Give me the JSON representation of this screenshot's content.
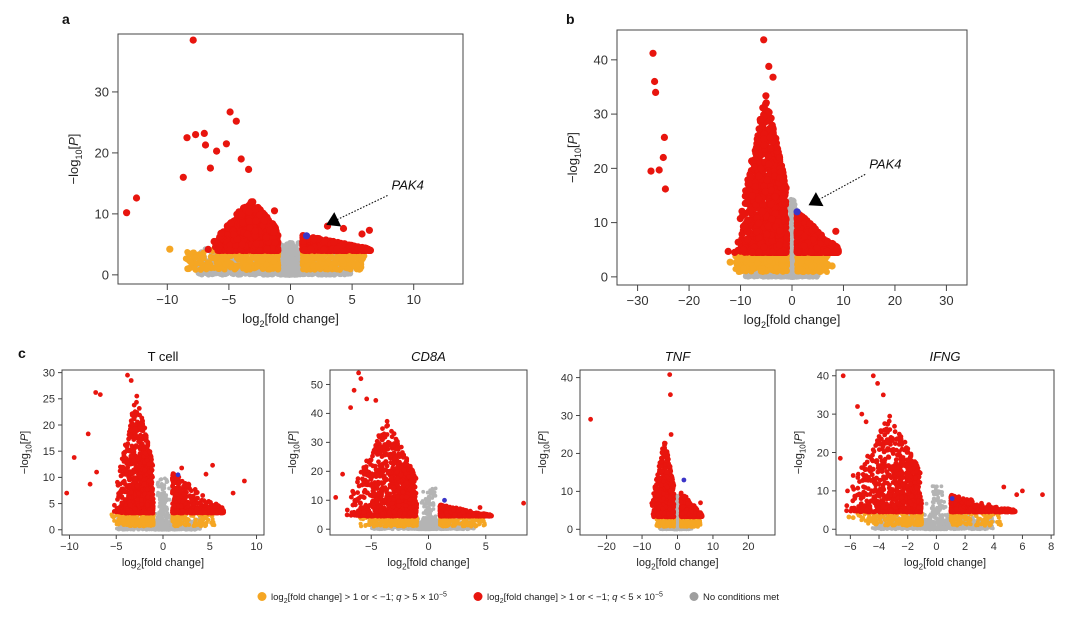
{
  "figure": {
    "panel_labels": [
      "a",
      "b",
      "c"
    ],
    "legend": [
      {
        "color": "#f5a623",
        "parts": [
          [
            "log",
            ""
          ],
          [
            "2",
            "sub"
          ],
          [
            "[fold change] > 1 or < −1; ",
            ""
          ],
          [
            "q",
            "i"
          ],
          [
            " > 5 × 10",
            ""
          ],
          [
            "−5",
            "sup"
          ]
        ]
      },
      {
        "color": "#e8150e",
        "parts": [
          [
            "log",
            ""
          ],
          [
            "2",
            "sub"
          ],
          [
            "[fold change] > 1 or < −1; ",
            ""
          ],
          [
            "q",
            "i"
          ],
          [
            " < 5 × 10",
            ""
          ],
          [
            "−5",
            "sup"
          ]
        ]
      },
      {
        "color": "#9e9e9e",
        "parts": [
          [
            "No conditions met",
            ""
          ]
        ]
      }
    ]
  },
  "colors": {
    "orange": "#f5a623",
    "red": "#e8150e",
    "gray": "#b4b4b4",
    "highlight": "#3b35c8",
    "black": "#000000"
  },
  "chart_data": [
    {
      "id": "a",
      "type": "scatter",
      "title": "",
      "xlabel": [
        [
          "log",
          ""
        ],
        [
          "2",
          "sub"
        ],
        [
          "[fold change]",
          ""
        ]
      ],
      "ylabel": [
        [
          "−log",
          ""
        ],
        [
          "10",
          "sub"
        ],
        [
          "[",
          ""
        ],
        [
          "P",
          "i"
        ],
        [
          "]",
          ""
        ]
      ],
      "xlim": [
        -14,
        14
      ],
      "ylim": [
        -1.5,
        39.5
      ],
      "xticks": [
        -10,
        -5,
        0,
        5,
        10
      ],
      "yticks": [
        0,
        10,
        20,
        30
      ],
      "grid": false,
      "annotation": {
        "label": "PAK4",
        "point": [
          2.9,
          8.2
        ],
        "text_at": [
          8.2,
          14.0
        ]
      },
      "series": [
        {
          "category": "ns",
          "left": [
            -7.5,
            -0.5
          ],
          "right": [
            0.3,
            5.0
          ],
          "ymax": 3.0
        },
        {
          "category": "fc_only",
          "left": [
            -8.5,
            -1.0
          ],
          "right": [
            1.0,
            6.0
          ],
          "ymax": 4.0
        },
        {
          "category": "sig",
          "left": [
            -6.0,
            -1.0
          ],
          "leftPeak": 12.5,
          "right": [
            1.0,
            6.5
          ],
          "rightPeak": 6.5,
          "count": 1450
        },
        {
          "category": "sig_outliers",
          "points": [
            [
              -7.9,
              38.5
            ],
            [
              -13.3,
              10.2
            ],
            [
              -12.5,
              12.6
            ],
            [
              -4.9,
              26.7
            ],
            [
              -4.4,
              25.2
            ],
            [
              -8.4,
              22.5
            ],
            [
              -7.7,
              23.0
            ],
            [
              -7.0,
              23.2
            ],
            [
              -6.9,
              21.3
            ],
            [
              -6.0,
              20.3
            ],
            [
              -5.2,
              21.5
            ],
            [
              -8.7,
              16.0
            ],
            [
              -6.5,
              17.5
            ],
            [
              -4.0,
              19.0
            ],
            [
              -3.4,
              17.3
            ],
            [
              -1.3,
              10.5
            ],
            [
              3.0,
              8.0
            ],
            [
              4.3,
              7.6
            ],
            [
              6.4,
              7.3
            ],
            [
              5.8,
              6.7
            ]
          ]
        },
        {
          "category": "fc_only_outliers",
          "points": [
            [
              -9.8,
              4.2
            ],
            [
              -6.3,
              4.0
            ]
          ]
        },
        {
          "category": "highlight",
          "points": [
            [
              1.3,
              6.4
            ]
          ]
        }
      ]
    },
    {
      "id": "b",
      "type": "scatter",
      "title": "",
      "xlabel": [
        [
          "log",
          ""
        ],
        [
          "2",
          "sub"
        ],
        [
          "[fold change]",
          ""
        ]
      ],
      "ylabel": [
        [
          "−log",
          ""
        ],
        [
          "10",
          "sub"
        ],
        [
          "[",
          ""
        ],
        [
          "P",
          "i"
        ],
        [
          "]",
          ""
        ]
      ],
      "xlim": [
        -34,
        34
      ],
      "ylim": [
        -1.5,
        45.5
      ],
      "xticks": [
        -30,
        -20,
        -10,
        0,
        10,
        20,
        30
      ],
      "yticks": [
        0,
        10,
        20,
        30,
        40
      ],
      "grid": false,
      "annotation": {
        "label": "PAK4",
        "point": [
          3.2,
          13.2
        ],
        "text_at": [
          15.0,
          20.0
        ]
      },
      "series": [
        {
          "category": "ns",
          "left": [
            -9.0,
            -0.5
          ],
          "right": [
            0.3,
            5.0
          ],
          "ymax": 3.0
        },
        {
          "category": "fc_only",
          "left": [
            -11.0,
            -1.0
          ],
          "right": [
            1.0,
            7.0
          ],
          "ymax": 4.5
        },
        {
          "category": "sig",
          "left": [
            -10.0,
            -1.0
          ],
          "leftPeak": 34.0,
          "right": [
            1.0,
            9.0
          ],
          "rightPeak": 12.0,
          "count": 1800
        },
        {
          "category": "sig_outliers",
          "points": [
            [
              -27.0,
              41.2
            ],
            [
              -26.7,
              36.0
            ],
            [
              -26.5,
              34.0
            ],
            [
              -24.8,
              25.7
            ],
            [
              -25.0,
              22.0
            ],
            [
              -25.8,
              19.7
            ],
            [
              -27.4,
              19.5
            ],
            [
              -24.6,
              16.2
            ],
            [
              -5.5,
              43.7
            ],
            [
              -4.5,
              38.8
            ],
            [
              -3.7,
              36.8
            ],
            [
              -12.4,
              4.7
            ],
            [
              8.5,
              8.4
            ]
          ]
        },
        {
          "category": "fc_only_outliers",
          "points": [
            [
              -12.0,
              2.7
            ],
            [
              7.8,
              2.0
            ]
          ]
        },
        {
          "category": "highlight",
          "points": [
            [
              1.0,
              12.0
            ]
          ]
        }
      ]
    },
    {
      "id": "c1",
      "type": "scatter",
      "title": "T cell",
      "title_italic": false,
      "xlabel": [
        [
          "log",
          ""
        ],
        [
          "2",
          "sub"
        ],
        [
          "[fold change]",
          ""
        ]
      ],
      "ylabel": [
        [
          "−log",
          ""
        ],
        [
          "10",
          "sub"
        ],
        [
          "[",
          ""
        ],
        [
          "P",
          "i"
        ],
        [
          "]",
          ""
        ]
      ],
      "xlim": [
        -10.8,
        10.8
      ],
      "ylim": [
        -1.0,
        30.5
      ],
      "xticks": [
        -10,
        -5,
        0,
        5,
        10
      ],
      "yticks": [
        0,
        5,
        10,
        15,
        20,
        25,
        30
      ],
      "grid": false,
      "series": [
        {
          "category": "ns",
          "left": [
            -5.0,
            -0.4
          ],
          "right": [
            0.4,
            4.0
          ],
          "ymax": 2.2
        },
        {
          "category": "fc_only",
          "left": [
            -5.5,
            -1.0
          ],
          "right": [
            1.0,
            5.5
          ],
          "ymax": 3.2
        },
        {
          "category": "sig",
          "left": [
            -5.0,
            -1.0
          ],
          "leftPeak": 26.0,
          "right": [
            1.0,
            6.5
          ],
          "rightPeak": 11.0,
          "count": 1200
        },
        {
          "category": "sig_outliers",
          "points": [
            [
              -10.3,
              7.0
            ],
            [
              -7.2,
              26.2
            ],
            [
              -6.7,
              25.8
            ],
            [
              -8.0,
              18.3
            ],
            [
              -7.1,
              11.0
            ],
            [
              -3.8,
              29.5
            ],
            [
              -3.4,
              28.5
            ],
            [
              -9.5,
              13.8
            ],
            [
              -7.8,
              8.7
            ],
            [
              8.7,
              9.3
            ],
            [
              7.5,
              7.0
            ],
            [
              5.3,
              12.3
            ],
            [
              4.6,
              10.6
            ],
            [
              2.0,
              11.8
            ]
          ]
        },
        {
          "category": "fc_only_outliers",
          "points": [
            [
              5.3,
              1.5
            ]
          ]
        },
        {
          "category": "highlight",
          "points": [
            [
              1.6,
              10.5
            ]
          ]
        }
      ]
    },
    {
      "id": "c2",
      "type": "scatter",
      "title": "CD8A",
      "title_italic": true,
      "xlabel": [
        [
          "log",
          ""
        ],
        [
          "2",
          "sub"
        ],
        [
          "[fold change]",
          ""
        ]
      ],
      "ylabel": [
        [
          "−log",
          ""
        ],
        [
          "10",
          "sub"
        ],
        [
          "[",
          ""
        ],
        [
          "P",
          "i"
        ],
        [
          "]",
          ""
        ]
      ],
      "xlim": [
        -8.6,
        8.6
      ],
      "ylim": [
        -2.0,
        55.0
      ],
      "xticks": [
        -5,
        0,
        5
      ],
      "yticks": [
        0,
        10,
        20,
        30,
        40,
        50
      ],
      "grid": false,
      "series": [
        {
          "category": "ns",
          "left": [
            -5.0,
            -0.4
          ],
          "right": [
            0.4,
            4.0
          ],
          "ymax": 3.0
        },
        {
          "category": "fc_only",
          "left": [
            -6.0,
            -1.0
          ],
          "right": [
            1.0,
            5.0
          ],
          "ymax": 4.5
        },
        {
          "category": "sig",
          "left": [
            -6.8,
            -1.0
          ],
          "leftPeak": 38.0,
          "right": [
            1.0,
            5.5
          ],
          "rightPeak": 8.5,
          "count": 1300
        },
        {
          "category": "sig_outliers",
          "points": [
            [
              -6.1,
              54.0
            ],
            [
              -5.9,
              52.0
            ],
            [
              -6.5,
              48.0
            ],
            [
              -6.8,
              42.0
            ],
            [
              -5.4,
              45.0
            ],
            [
              -4.6,
              44.5
            ],
            [
              -3.0,
              33.0
            ],
            [
              -7.5,
              19.0
            ],
            [
              -8.1,
              11.0
            ],
            [
              8.3,
              9.0
            ],
            [
              4.5,
              7.5
            ]
          ]
        },
        {
          "category": "fc_only_outliers",
          "points": []
        },
        {
          "category": "highlight",
          "points": [
            [
              1.4,
              10.0
            ]
          ]
        }
      ]
    },
    {
      "id": "c3",
      "type": "scatter",
      "title": "TNF",
      "title_italic": true,
      "xlabel": [
        [
          "log",
          ""
        ],
        [
          "2",
          "sub"
        ],
        [
          "[fold change]",
          ""
        ]
      ],
      "ylabel": [
        [
          "−log",
          ""
        ],
        [
          "10",
          "sub"
        ],
        [
          "[",
          ""
        ],
        [
          "P",
          "i"
        ],
        [
          "]",
          ""
        ]
      ],
      "xlim": [
        -27.5,
        27.5
      ],
      "ylim": [
        -1.5,
        42.0
      ],
      "xticks": [
        -20,
        -10,
        0,
        10,
        20
      ],
      "yticks": [
        0,
        10,
        20,
        30,
        40
      ],
      "grid": false,
      "series": [
        {
          "category": "ns",
          "left": [
            -5.0,
            -0.4
          ],
          "right": [
            0.4,
            4.0
          ],
          "ymax": 2.2
        },
        {
          "category": "fc_only",
          "left": [
            -6.0,
            -1.0
          ],
          "right": [
            1.0,
            6.5
          ],
          "ymax": 3.3
        },
        {
          "category": "sig",
          "left": [
            -7.0,
            -1.0
          ],
          "leftPeak": 24.0,
          "right": [
            1.0,
            7.0
          ],
          "rightPeak": 10.0,
          "count": 900
        },
        {
          "category": "sig_outliers",
          "points": [
            [
              -24.5,
              29.0
            ],
            [
              -2.2,
              40.8
            ],
            [
              -2.0,
              35.5
            ],
            [
              -1.8,
              25.0
            ],
            [
              6.5,
              7.0
            ]
          ]
        },
        {
          "category": "fc_only_outliers",
          "points": []
        },
        {
          "category": "highlight",
          "points": [
            [
              1.8,
              13.0
            ]
          ]
        }
      ]
    },
    {
      "id": "c4",
      "type": "scatter",
      "title": "IFNG",
      "title_italic": true,
      "xlabel": [
        [
          "log",
          ""
        ],
        [
          "2",
          "sub"
        ],
        [
          "[fold change]",
          ""
        ]
      ],
      "ylabel": [
        [
          "−log",
          ""
        ],
        [
          "10",
          "sub"
        ],
        [
          "[",
          ""
        ],
        [
          "P",
          "i"
        ],
        [
          "]",
          ""
        ]
      ],
      "xlim": [
        -7.0,
        8.2
      ],
      "ylim": [
        -1.5,
        41.5
      ],
      "xticks": [
        -6,
        -4,
        -2,
        0,
        2,
        4,
        6,
        8
      ],
      "yticks": [
        0,
        10,
        20,
        30,
        40
      ],
      "grid": false,
      "series": [
        {
          "category": "ns",
          "left": [
            -4.5,
            -0.4
          ],
          "right": [
            0.4,
            4.0
          ],
          "ymax": 3.0
        },
        {
          "category": "fc_only",
          "left": [
            -5.5,
            -1.0
          ],
          "right": [
            1.0,
            4.5
          ],
          "ymax": 4.5
        },
        {
          "category": "sig",
          "left": [
            -6.0,
            -1.0
          ],
          "leftPeak": 30.0,
          "right": [
            1.0,
            5.5
          ],
          "rightPeak": 9.0,
          "count": 1100
        },
        {
          "category": "sig_outliers",
          "points": [
            [
              -6.5,
              40.0
            ],
            [
              -4.4,
              40.0
            ],
            [
              -6.7,
              18.5
            ],
            [
              -5.5,
              32.0
            ],
            [
              -5.2,
              30.0
            ],
            [
              -4.1,
              38.0
            ],
            [
              -3.7,
              35.0
            ],
            [
              -4.9,
              28.0
            ],
            [
              7.4,
              9.0
            ],
            [
              6.0,
              10.0
            ],
            [
              5.6,
              9.0
            ],
            [
              4.7,
              11.0
            ],
            [
              -5.8,
              14.0
            ],
            [
              -6.2,
              10.0
            ]
          ]
        },
        {
          "category": "fc_only_outliers",
          "points": [
            [
              -6.1,
              3.2
            ],
            [
              -5.8,
              3.0
            ]
          ]
        },
        {
          "category": "highlight",
          "points": [
            [
              1.1,
              8.0
            ]
          ]
        }
      ]
    }
  ]
}
